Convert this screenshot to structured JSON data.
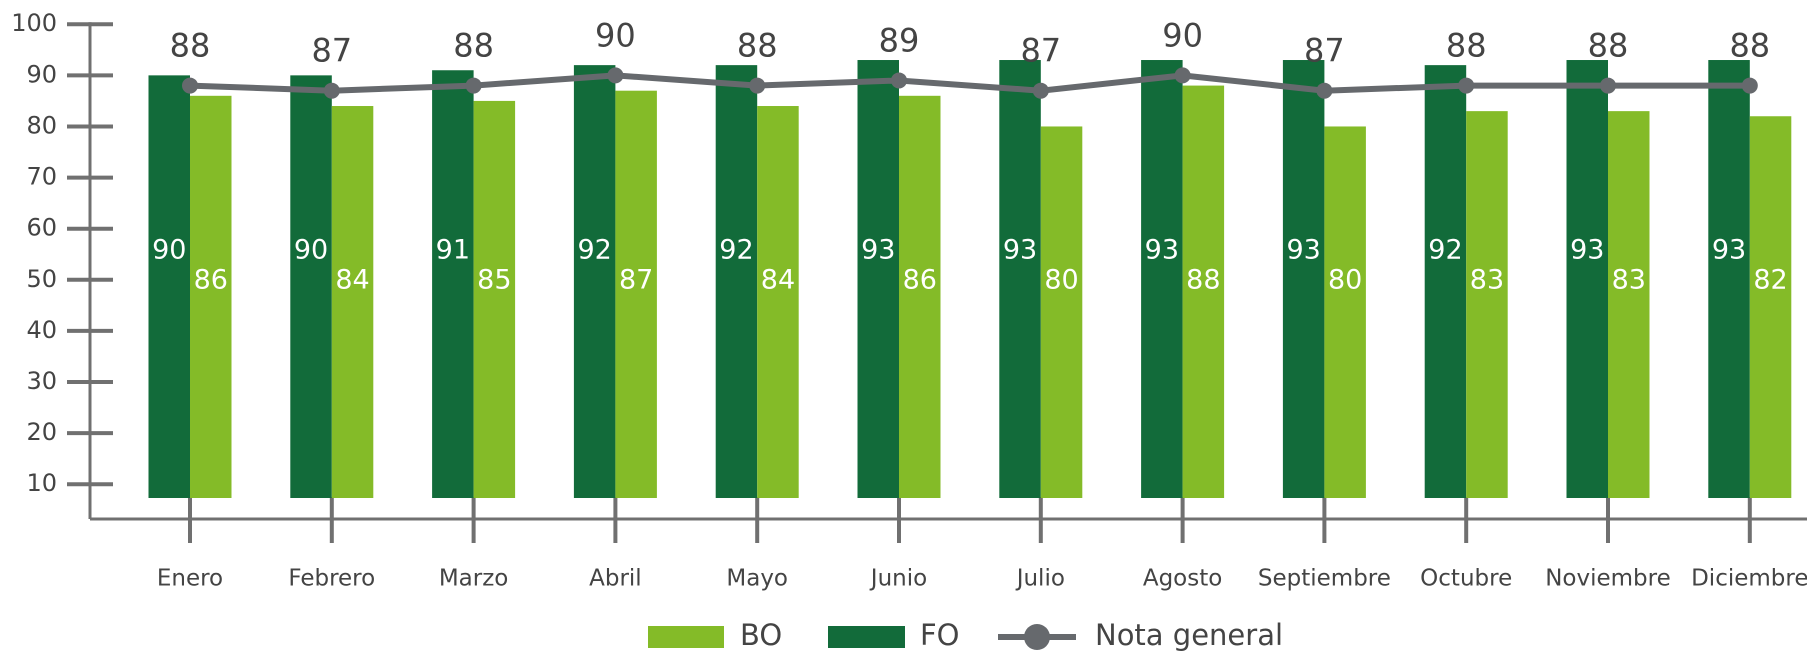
{
  "chart_data": {
    "type": "bar_line",
    "categories": [
      "Enero",
      "Febrero",
      "Marzo",
      "Abril",
      "Mayo",
      "Junio",
      "Julio",
      "Agosto",
      "Septiembre",
      "Octubre",
      "Noviembre",
      "Diciembre"
    ],
    "series": [
      {
        "name": "BO",
        "color": "#84bb28",
        "values": [
          86,
          84,
          85,
          87,
          84,
          86,
          80,
          88,
          80,
          83,
          83,
          82
        ]
      },
      {
        "name": "FO",
        "color": "#126b3a",
        "values": [
          90,
          90,
          91,
          92,
          92,
          93,
          93,
          93,
          93,
          92,
          93,
          93
        ]
      },
      {
        "name": "Nota general",
        "color": "#66696d",
        "values": [
          88,
          87,
          88,
          90,
          88,
          89,
          87,
          90,
          87,
          88,
          88,
          88
        ]
      }
    ],
    "ylim": [
      3.2,
      100
    ],
    "yticks": [
      10,
      20,
      30,
      40,
      50,
      60,
      70,
      80,
      90,
      100
    ]
  }
}
